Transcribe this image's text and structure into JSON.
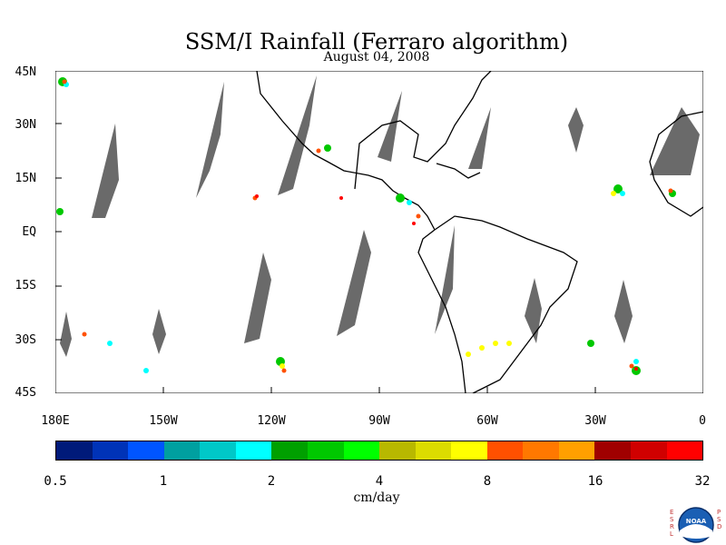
{
  "title": "SSM/I Rainfall (Ferraro algorithm)",
  "date": "August 04, 2008",
  "lat_labels": [
    "45N",
    "30N",
    "15N",
    "EQ",
    "15S",
    "30S",
    "45S"
  ],
  "lon_labels": [
    "180E",
    "150W",
    "120W",
    "90W",
    "60W",
    "30W",
    "0"
  ],
  "colorbar": {
    "colors": [
      "#001a7a",
      "#0033b8",
      "#0055ff",
      "#00a0a0",
      "#00c8c8",
      "#00ffff",
      "#00a000",
      "#00c800",
      "#00ff00",
      "#b8b800",
      "#dcdc00",
      "#ffff00",
      "#ff5000",
      "#ff7800",
      "#ffa000",
      "#a00000",
      "#d00000",
      "#ff0000"
    ],
    "tick_labels": [
      "0.5",
      "1",
      "2",
      "4",
      "8",
      "16",
      "32"
    ],
    "unit": "cm/day"
  },
  "logo": {
    "text": "NOAA",
    "left": "ESRL",
    "right": "PSD"
  }
}
